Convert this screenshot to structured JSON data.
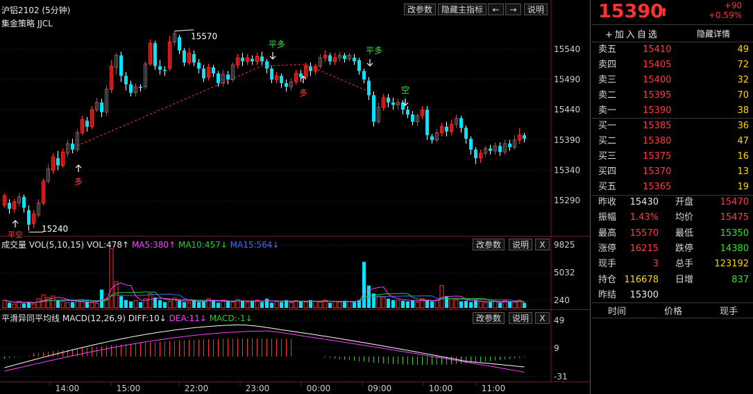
{
  "main_panel": {
    "title": "沪铝2102 (5分钟)",
    "strategy": "集金策略 JJCL",
    "buttons": {
      "params": "改参数",
      "hide_indicator": "隐藏主指标",
      "prev": "←",
      "next": "→",
      "help": "说明"
    },
    "price_axis": [
      "15540",
      "15490",
      "15440",
      "15390",
      "15340",
      "15290"
    ],
    "high_label": "15570",
    "low_label": "15240",
    "signals": {
      "buy_open": "多",
      "close_long": "平多",
      "short": "空",
      "close_short": "平空"
    }
  },
  "volume_panel": {
    "name": "成交量",
    "vol_label": "VOL(5,10,15)",
    "vol_value": "VOL:478↑",
    "ma5": "MA5:380↑",
    "ma10": "MA10:457↓",
    "ma15": "MA15:564↓",
    "buttons": {
      "params": "改参数",
      "help": "说明",
      "close": "X"
    },
    "axis": [
      "9825",
      "5032",
      "240"
    ]
  },
  "macd_panel": {
    "name": "平滑异同平均线",
    "label": "MACD(12,26,9)",
    "diff": "DIFF:10↓",
    "dea": "DEA:11↓",
    "macd": "MACD:-1↓",
    "buttons": {
      "params": "改参数",
      "help": "说明",
      "close": "X"
    },
    "axis": [
      "49",
      "9",
      "-31"
    ]
  },
  "time_axis": [
    "14:00",
    "15:00",
    "22:00",
    "23:00",
    "00:00",
    "09:00",
    "10:00",
    "11:00"
  ],
  "quote": {
    "price": "15390",
    "arrow": "⬆",
    "change": "+90",
    "change_pct": "+0.59%",
    "add_watch": "+加入自选",
    "hide_detail": "隐藏详情",
    "asks": [
      {
        "label": "卖五",
        "price": "15410",
        "vol": "49"
      },
      {
        "label": "卖四",
        "price": "15405",
        "vol": "72"
      },
      {
        "label": "卖三",
        "price": "15400",
        "vol": "32"
      },
      {
        "label": "卖二",
        "price": "15395",
        "vol": "70"
      },
      {
        "label": "卖一",
        "price": "15390",
        "vol": "38"
      }
    ],
    "bids": [
      {
        "label": "买一",
        "price": "15385",
        "vol": "36"
      },
      {
        "label": "买二",
        "price": "15380",
        "vol": "47"
      },
      {
        "label": "买三",
        "price": "15375",
        "vol": "16"
      },
      {
        "label": "买四",
        "price": "15370",
        "vol": "13"
      },
      {
        "label": "买五",
        "price": "15365",
        "vol": "19"
      }
    ],
    "stats": [
      {
        "l1": "昨收",
        "v1": "15430",
        "l2": "开盘",
        "v2": "15470"
      },
      {
        "l1": "振幅",
        "v1": "1.43%",
        "l2": "均价",
        "v2": "15475"
      },
      {
        "l1": "最高",
        "v1": "15570",
        "l2": "最低",
        "v2": "15350"
      },
      {
        "l1": "涨停",
        "v1": "16215",
        "l2": "跌停",
        "v2": "14380"
      },
      {
        "l1": "现手",
        "v1": "3",
        "l2": "总手",
        "v2": "123192"
      },
      {
        "l1": "持仓",
        "v1": "116678",
        "l2": "日增",
        "v2": "837"
      },
      {
        "l1": "昨结",
        "v1": "15300",
        "l2": "",
        "v2": ""
      }
    ],
    "tick_headers": [
      "时间",
      "价格",
      "现手"
    ]
  },
  "colors": {
    "up": "#ff3232",
    "down": "#00e5ff",
    "grid": "#1e2a44",
    "ma5": "#ff40ff",
    "ma10": "#21d321",
    "ma15": "#4a6cff"
  },
  "chart_data": {
    "type": "candlestick",
    "y_axis": [
      15290,
      15540
    ],
    "candles": [
      [
        15282,
        15298,
        15278,
        15302
      ],
      [
        15286,
        15276,
        15268,
        15292
      ],
      [
        15276,
        15288,
        15270,
        15292
      ],
      [
        15286,
        15296,
        15280,
        15302
      ],
      [
        15296,
        15278,
        15270,
        15300
      ],
      [
        15274,
        15250,
        15240,
        15282
      ],
      [
        15252,
        15268,
        15244,
        15274
      ],
      [
        15266,
        15286,
        15262,
        15292
      ],
      [
        15286,
        15322,
        15282,
        15326
      ],
      [
        15322,
        15342,
        15318,
        15350
      ],
      [
        15340,
        15362,
        15334,
        15368
      ],
      [
        15360,
        15348,
        15340,
        15372
      ],
      [
        15348,
        15370,
        15344,
        15376
      ],
      [
        15368,
        15384,
        15362,
        15390
      ],
      [
        15384,
        15374,
        15368,
        15392
      ],
      [
        15374,
        15402,
        15370,
        15408
      ],
      [
        15402,
        15424,
        15398,
        15430
      ],
      [
        15422,
        15412,
        15404,
        15428
      ],
      [
        15412,
        15440,
        15408,
        15446
      ],
      [
        15440,
        15452,
        15436,
        15460
      ],
      [
        15452,
        15436,
        15428,
        15458
      ],
      [
        15436,
        15474,
        15430,
        15480
      ],
      [
        15474,
        15512,
        15468,
        15522
      ],
      [
        15510,
        15530,
        15498,
        15534
      ],
      [
        15530,
        15496,
        15486,
        15536
      ],
      [
        15496,
        15482,
        15472,
        15502
      ],
      [
        15482,
        15468,
        15462,
        15488
      ],
      [
        15468,
        15478,
        15462,
        15484
      ],
      [
        15478,
        15476,
        15470,
        15482
      ],
      [
        15478,
        15516,
        15474,
        15520
      ],
      [
        15516,
        15550,
        15512,
        15556
      ],
      [
        15550,
        15512,
        15506,
        15554
      ],
      [
        15512,
        15506,
        15498,
        15522
      ],
      [
        15506,
        15504,
        15496,
        15512
      ],
      [
        15508,
        15552,
        15504,
        15562
      ],
      [
        15552,
        15566,
        15546,
        15570
      ],
      [
        15560,
        15538,
        15532,
        15564
      ],
      [
        15538,
        15518,
        15512,
        15542
      ],
      [
        15518,
        15534,
        15514,
        15542
      ],
      [
        15532,
        15518,
        15512,
        15538
      ],
      [
        15518,
        15508,
        15500,
        15524
      ],
      [
        15508,
        15492,
        15486,
        15514
      ],
      [
        15494,
        15510,
        15488,
        15516
      ],
      [
        15510,
        15500,
        15494,
        15514
      ],
      [
        15500,
        15484,
        15478,
        15504
      ],
      [
        15484,
        15498,
        15478,
        15506
      ],
      [
        15498,
        15490,
        15482,
        15504
      ],
      [
        15490,
        15514,
        15486,
        15518
      ],
      [
        15514,
        15526,
        15508,
        15532
      ],
      [
        15526,
        15520,
        15512,
        15534
      ],
      [
        15520,
        15526,
        15514,
        15532
      ],
      [
        15524,
        15520,
        15514,
        15530
      ],
      [
        15520,
        15528,
        15514,
        15534
      ],
      [
        15528,
        15520,
        15514,
        15536
      ],
      [
        15520,
        15508,
        15500,
        15524
      ],
      [
        15508,
        15490,
        15484,
        15512
      ],
      [
        15490,
        15496,
        15484,
        15502
      ],
      [
        15496,
        15484,
        15476,
        15500
      ],
      [
        15484,
        15478,
        15470,
        15490
      ],
      [
        15478,
        15486,
        15472,
        15492
      ],
      [
        15486,
        15500,
        15482,
        15506
      ],
      [
        15500,
        15494,
        15486,
        15506
      ],
      [
        15494,
        15512,
        15490,
        15518
      ],
      [
        15512,
        15504,
        15496,
        15518
      ],
      [
        15504,
        15512,
        15498,
        15516
      ],
      [
        15512,
        15526,
        15508,
        15532
      ],
      [
        15526,
        15530,
        15520,
        15538
      ],
      [
        15530,
        15520,
        15514,
        15534
      ],
      [
        15520,
        15526,
        15514,
        15534
      ],
      [
        15526,
        15530,
        15520,
        15536
      ],
      [
        15530,
        15524,
        15518,
        15534
      ],
      [
        15524,
        15530,
        15520,
        15534
      ],
      [
        15526,
        15520,
        15514,
        15532
      ],
      [
        15522,
        15504,
        15498,
        15526
      ],
      [
        15504,
        15490,
        15484,
        15508
      ],
      [
        15488,
        15464,
        15456,
        15494
      ],
      [
        15464,
        15420,
        15412,
        15470
      ],
      [
        15420,
        15444,
        15416,
        15452
      ],
      [
        15444,
        15460,
        15438,
        15466
      ],
      [
        15460,
        15452,
        15444,
        15466
      ],
      [
        15452,
        15448,
        15440,
        15460
      ],
      [
        15448,
        15452,
        15440,
        15458
      ],
      [
        15452,
        15440,
        15432,
        15456
      ],
      [
        15440,
        15432,
        15426,
        15446
      ],
      [
        15432,
        15420,
        15414,
        15438
      ],
      [
        15420,
        15430,
        15412,
        15434
      ],
      [
        15430,
        15440,
        15424,
        15446
      ],
      [
        15440,
        15398,
        15390,
        15446
      ],
      [
        15396,
        15390,
        15384,
        15400
      ],
      [
        15390,
        15402,
        15386,
        15408
      ],
      [
        15402,
        15412,
        15396,
        15418
      ],
      [
        15412,
        15404,
        15396,
        15420
      ],
      [
        15404,
        15416,
        15398,
        15424
      ],
      [
        15416,
        15426,
        15410,
        15432
      ],
      [
        15426,
        15410,
        15402,
        15430
      ],
      [
        15410,
        15392,
        15384,
        15414
      ],
      [
        15392,
        15374,
        15366,
        15396
      ],
      [
        15374,
        15360,
        15350,
        15378
      ],
      [
        15360,
        15368,
        15352,
        15374
      ],
      [
        15368,
        15376,
        15362,
        15380
      ],
      [
        15376,
        15372,
        15366,
        15382
      ],
      [
        15372,
        15380,
        15366,
        15386
      ],
      [
        15380,
        15370,
        15364,
        15386
      ],
      [
        15370,
        15384,
        15366,
        15390
      ],
      [
        15384,
        15378,
        15372,
        15390
      ],
      [
        15378,
        15390,
        15374,
        15398
      ],
      [
        15390,
        15398,
        15384,
        15410
      ],
      [
        15398,
        15392,
        15386,
        15402
      ]
    ]
  }
}
